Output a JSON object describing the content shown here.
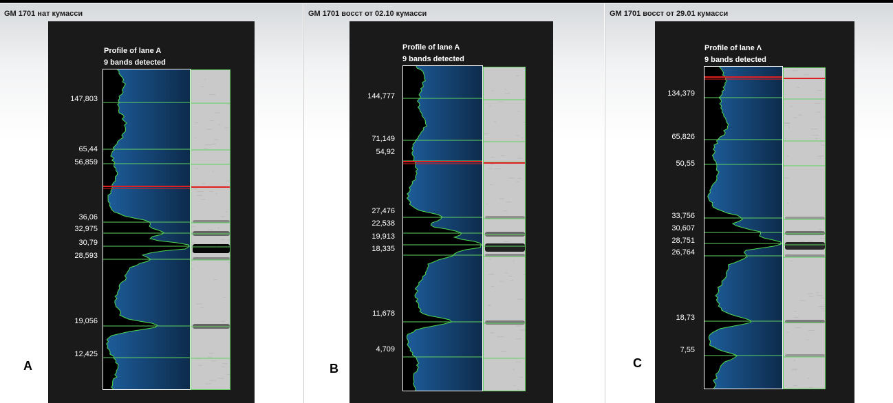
{
  "panels": [
    {
      "title": "GM 1701 нат кумасси",
      "letter": "A",
      "lane_title": "Profile of lane A",
      "bands_text": "9 bands detected",
      "mw_labels": [
        "147,803",
        "65,44",
        "56,859",
        "36,06",
        "32,975",
        "30,79",
        "28,593",
        "19,056",
        "12,425"
      ]
    },
    {
      "title": "GM 1701 восст от 02.10 кумасси",
      "letter": "B",
      "lane_title": "Profile of lane A",
      "bands_text": "9 bands detected",
      "mw_labels": [
        "144,777",
        "71,149",
        "54,92",
        "27,476",
        "22,538",
        "19,913",
        "18,335",
        "11,678",
        "4,709"
      ]
    },
    {
      "title": "GM 1701 восст от 29.01 кумасси",
      "letter": "C",
      "lane_title": "Profile of lane Λ",
      "bands_text": "9 bands detected",
      "mw_labels": [
        "134,379",
        "65,826",
        "50,55",
        "33,756",
        "30,607",
        "28,751",
        "26,764",
        "18,73",
        "7,55"
      ]
    }
  ],
  "colors": {
    "band_line": "#5fd35f",
    "marker_line": "#e02020",
    "profile_fill": "#1e5f9e",
    "profile_dark": "#0d2a4a",
    "background": "#1a1a1a"
  }
}
